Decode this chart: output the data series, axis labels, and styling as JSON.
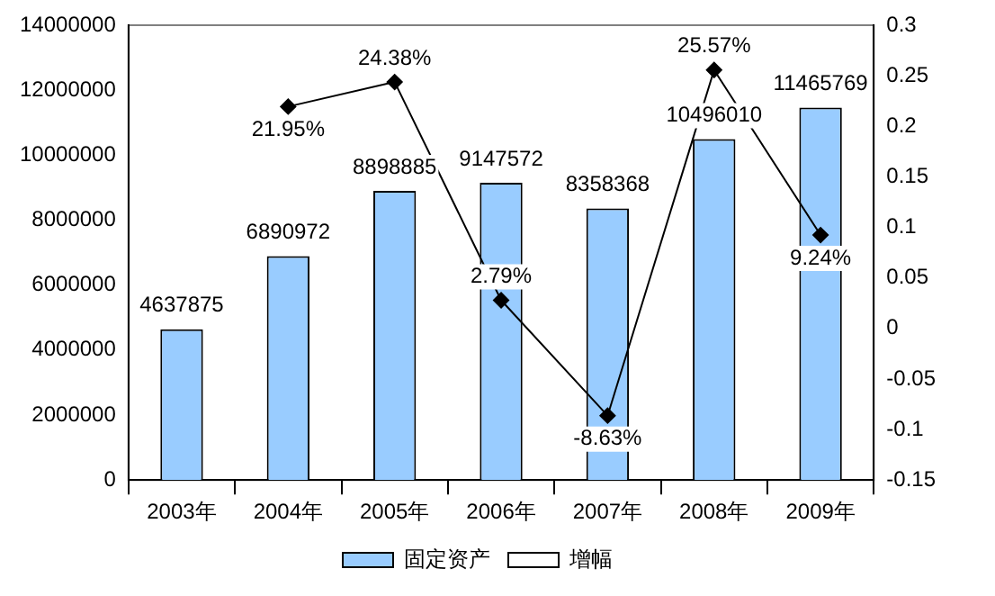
{
  "chart_data": {
    "type": "bar",
    "categories": [
      "2003年",
      "2004年",
      "2005年",
      "2006年",
      "2007年",
      "2008年",
      "2009年"
    ],
    "series": [
      {
        "name": "固定资产",
        "color": "#99ccff",
        "values": [
          4637875,
          6890972,
          8898885,
          9147572,
          8358368,
          10496010,
          11465769
        ],
        "value_labels": [
          "4637875",
          "6890972",
          "8898885",
          "9147572",
          "8358368",
          "10496010",
          "11465769"
        ]
      },
      {
        "name": "增幅",
        "type": "line",
        "axis": "y2",
        "color": "#000000",
        "values": [
          null,
          0.2195,
          0.2438,
          0.0279,
          -0.0863,
          0.2557,
          0.0924
        ],
        "value_labels": [
          null,
          "21.95%",
          "24.38%",
          "2.79%",
          "-8.63%",
          "25.57%",
          "9.24%"
        ]
      }
    ],
    "ylim": [
      0,
      14000000
    ],
    "yticks": [
      0,
      2000000,
      4000000,
      6000000,
      8000000,
      10000000,
      12000000,
      14000000
    ],
    "y2lim": [
      -0.15,
      0.3
    ],
    "y2ticks": [
      -0.15,
      -0.1,
      -0.05,
      0,
      0.05,
      0.1,
      0.15,
      0.2,
      0.25,
      0.3
    ],
    "legend": "bottom",
    "marker": "diamond",
    "grid": false
  }
}
